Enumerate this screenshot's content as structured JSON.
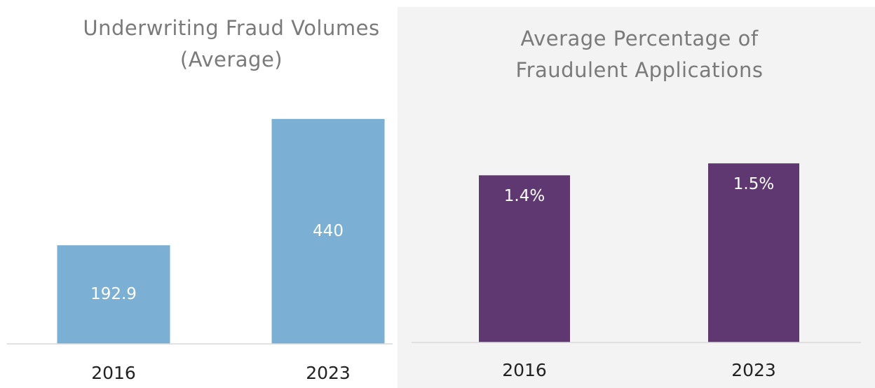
{
  "chart_data": [
    {
      "type": "bar",
      "title": [
        "Underwriting Fraud Volumes",
        "(Average)"
      ],
      "categories": [
        "2016",
        "2023"
      ],
      "values": [
        192.9,
        440
      ],
      "color": "#7bafd4",
      "ylim": [
        0,
        500
      ]
    },
    {
      "type": "bar",
      "title": [
        "Average Percentage of",
        "Fraudulent Applications"
      ],
      "categories": [
        "2016",
        "2023"
      ],
      "values": [
        1.4,
        1.5
      ],
      "value_labels": [
        "1.4%",
        "1.5%"
      ],
      "color": "#5f3872",
      "ylim": [
        0,
        2
      ]
    }
  ]
}
